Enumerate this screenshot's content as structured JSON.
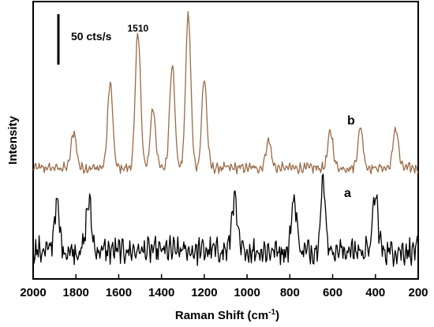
{
  "chart_data": {
    "type": "line",
    "xlabel": "Raman Shift (cm",
    "xlabel_sup": "-1",
    "xlabel_end": ")",
    "ylabel": "Intensity",
    "x_reversed": true,
    "xlim": [
      2000,
      200
    ],
    "x_ticks": [
      2000,
      1800,
      1600,
      1400,
      1200,
      1000,
      800,
      600,
      400,
      200
    ],
    "y_ticks_shown": false,
    "grid": false,
    "legend": "none",
    "scale_bar": {
      "label": "50 cts/s",
      "value": 50
    },
    "peak_label": {
      "text": "1510",
      "x": 1510
    },
    "series": [
      {
        "name": "b",
        "color": "#9c6b45",
        "baseline": 100,
        "peaks": [
          {
            "x": 1640,
            "y": 205
          },
          {
            "x": 1510,
            "y": 270
          },
          {
            "x": 1440,
            "y": 175
          },
          {
            "x": 1350,
            "y": 230
          },
          {
            "x": 1275,
            "y": 290
          },
          {
            "x": 1200,
            "y": 210
          },
          {
            "x": 1810,
            "y": 145
          },
          {
            "x": 900,
            "y": 135
          },
          {
            "x": 610,
            "y": 145
          },
          {
            "x": 470,
            "y": 150
          },
          {
            "x": 305,
            "y": 150
          }
        ]
      },
      {
        "name": "a",
        "color": "#000000",
        "baseline": 0,
        "peaks": [
          {
            "x": 645,
            "y": 78
          },
          {
            "x": 1740,
            "y": 58
          },
          {
            "x": 1890,
            "y": 55
          },
          {
            "x": 1060,
            "y": 62
          },
          {
            "x": 780,
            "y": 62
          },
          {
            "x": 400,
            "y": 65
          }
        ]
      }
    ]
  }
}
